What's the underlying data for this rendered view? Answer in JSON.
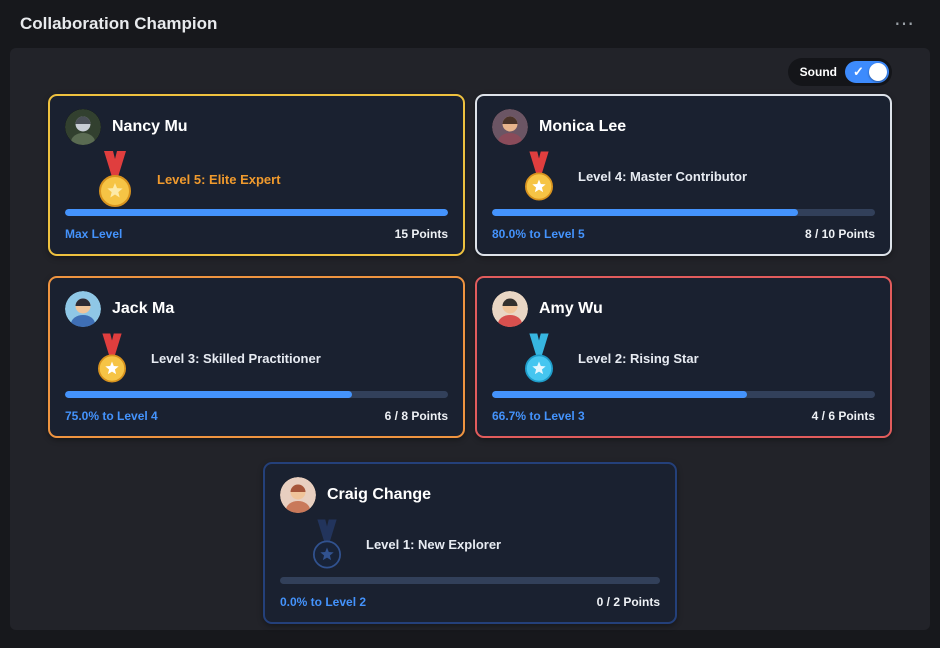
{
  "page": {
    "title": "Collaboration Champion",
    "menu_icon": "⋯"
  },
  "sound": {
    "label": "Sound",
    "check_icon": "✓",
    "state": "on"
  },
  "colors": {
    "progress_fill": "#4493fc",
    "progress_track": "#32405a",
    "status_text": "#4493fc",
    "panel_bg": "#222329",
    "card_bg": "#1a2130"
  },
  "cards": [
    {
      "name": "Nancy Mu",
      "level": "Level 5: Elite Expert",
      "status": "Max Level",
      "points": "15 Points",
      "progress_pct": 100,
      "border_color": "#eec13f",
      "level_color": "#f09a2d",
      "medal": {
        "ribbon": "#e03e3e",
        "circle": "#f6c445",
        "circle_stroke": "#d8931e",
        "star": "#fdeaa8"
      },
      "avatar": {
        "bg": "#32402f",
        "skin": "#c9ced6",
        "hair": "#4a4f57",
        "shirt": "#5a6b52"
      }
    },
    {
      "name": "Monica Lee",
      "level": "Level 4: Master Contributor",
      "status": "80.0% to Level 5",
      "points": "8 / 10 Points",
      "progress_pct": 80,
      "border_color": "#dde2e9",
      "level_color": "#e7ebf2",
      "medal": {
        "ribbon": "#e03e3e",
        "circle": "#f6c445",
        "circle_stroke": "#d8931e",
        "star": "#ffffff"
      },
      "avatar": {
        "bg": "#6b5564",
        "skin": "#e8b48c",
        "hair": "#4a3328",
        "shirt": "#8a4b5a"
      }
    },
    {
      "name": "Jack Ma",
      "level": "Level 3: Skilled Practitioner",
      "status": "75.0% to Level 4",
      "points": "6 / 8 Points",
      "progress_pct": 75,
      "border_color": "#ef9440",
      "level_color": "#e7ebf2",
      "medal": {
        "ribbon": "#e03e3e",
        "circle": "#f6c445",
        "circle_stroke": "#d8931e",
        "star": "#ffffff"
      },
      "avatar": {
        "bg": "#8fc7e6",
        "skin": "#f0c49a",
        "hair": "#2e2a33",
        "shirt": "#3f6fb5"
      }
    },
    {
      "name": "Amy Wu",
      "level": "Level 2: Rising Star",
      "status": "66.7% to Level 3",
      "points": "4 / 6 Points",
      "progress_pct": 66.7,
      "border_color": "#e25c5c",
      "level_color": "#e7ebf2",
      "medal": {
        "ribbon": "#37b6e0",
        "circle": "#45c6f0",
        "circle_stroke": "#1f9cc9",
        "star": "#e3f7ff"
      },
      "avatar": {
        "bg": "#e9d6c4",
        "skin": "#f0c49a",
        "hair": "#33302e",
        "shirt": "#d8504e"
      }
    },
    {
      "name": "Craig Change",
      "level": "Level 1: New Explorer",
      "status": "0.0% to Level 2",
      "points": "0 / 2 Points",
      "progress_pct": 0,
      "border_color": "#24407a",
      "level_color": "#e7ebf2",
      "medal": {
        "ribbon": "#22345c",
        "circle": "#182338",
        "circle_stroke": "#31528f",
        "star": "#31528f"
      },
      "avatar": {
        "bg": "#e8cfc0",
        "skin": "#f0c49a",
        "hair": "#a5553a",
        "shirt": "#c9795a"
      }
    }
  ]
}
